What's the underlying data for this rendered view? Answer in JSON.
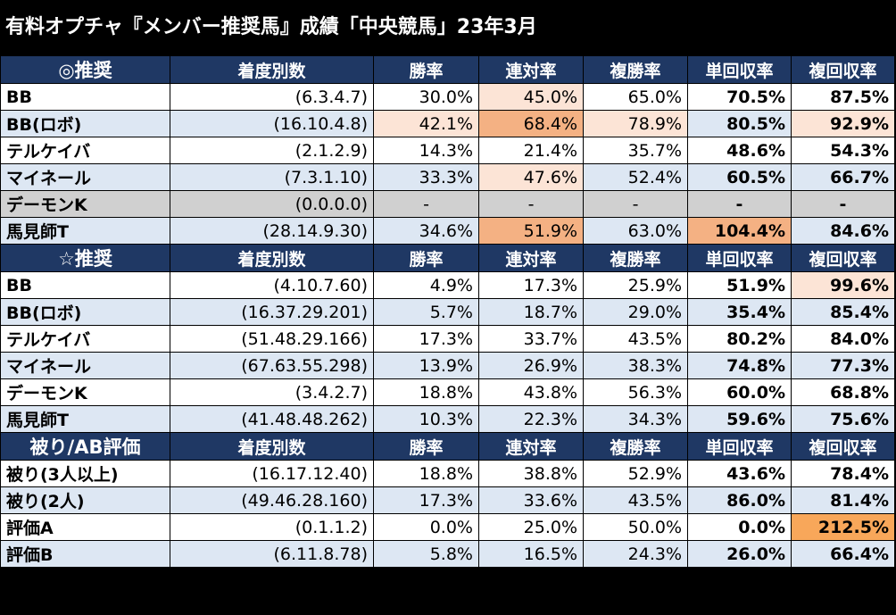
{
  "title": "有料オプチャ『メンバー推奨馬』成績「中央競馬」23年3月",
  "columns": [
    "着度別数",
    "勝率",
    "連対率",
    "複勝率",
    "単回収率",
    "複回収率"
  ],
  "colors": {
    "header_bg": "#1f3864",
    "row_alt": "#dde7f3",
    "row_gray": "#d0d0d0",
    "highlight_light": "#fce4d6",
    "highlight_mid": "#f4b183",
    "highlight_strong": "#f8a75a"
  },
  "sections": [
    {
      "name": "◎推奨",
      "rows": [
        {
          "label": "BB",
          "counts": "(6.3.4.7)",
          "win": "30.0%",
          "rentai": "45.0%",
          "fukusho": "65.0%",
          "tan": "70.5%",
          "fuku": "87.5%"
        },
        {
          "label": "BB(ロボ)",
          "counts": "(16.10.4.8)",
          "win": "42.1%",
          "rentai": "68.4%",
          "fukusho": "78.9%",
          "tan": "80.5%",
          "fuku": "92.9%"
        },
        {
          "label": "テルケイバ",
          "counts": "(2.1.2.9)",
          "win": "14.3%",
          "rentai": "21.4%",
          "fukusho": "35.7%",
          "tan": "48.6%",
          "fuku": "54.3%"
        },
        {
          "label": "マイネール",
          "counts": "(7.3.1.10)",
          "win": "33.3%",
          "rentai": "47.6%",
          "fukusho": "52.4%",
          "tan": "60.5%",
          "fuku": "66.7%"
        },
        {
          "label": "デーモンK",
          "counts": "(0.0.0.0)",
          "win": "-",
          "rentai": "-",
          "fukusho": "-",
          "tan": "-",
          "fuku": "-"
        },
        {
          "label": "馬見師T",
          "counts": "(28.14.9.30)",
          "win": "34.6%",
          "rentai": "51.9%",
          "fukusho": "63.0%",
          "tan": "104.4%",
          "fuku": "84.6%"
        }
      ]
    },
    {
      "name": "☆推奨",
      "rows": [
        {
          "label": "BB",
          "counts": "(4.10.7.60)",
          "win": "4.9%",
          "rentai": "17.3%",
          "fukusho": "25.9%",
          "tan": "51.9%",
          "fuku": "99.6%"
        },
        {
          "label": "BB(ロボ)",
          "counts": "(16.37.29.201)",
          "win": "5.7%",
          "rentai": "18.7%",
          "fukusho": "29.0%",
          "tan": "35.4%",
          "fuku": "85.4%"
        },
        {
          "label": "テルケイバ",
          "counts": "(51.48.29.166)",
          "win": "17.3%",
          "rentai": "33.7%",
          "fukusho": "43.5%",
          "tan": "80.2%",
          "fuku": "84.0%"
        },
        {
          "label": "マイネール",
          "counts": "(67.63.55.298)",
          "win": "13.9%",
          "rentai": "26.9%",
          "fukusho": "38.3%",
          "tan": "74.8%",
          "fuku": "77.3%"
        },
        {
          "label": "デーモンK",
          "counts": "(3.4.2.7)",
          "win": "18.8%",
          "rentai": "43.8%",
          "fukusho": "56.3%",
          "tan": "60.0%",
          "fuku": "68.8%"
        },
        {
          "label": "馬見師T",
          "counts": "(41.48.48.262)",
          "win": "10.3%",
          "rentai": "22.3%",
          "fukusho": "34.3%",
          "tan": "59.6%",
          "fuku": "75.6%"
        }
      ]
    },
    {
      "name": "被り/AB評価",
      "rows": [
        {
          "label": "被り(3人以上)",
          "counts": "(16.17.12.40)",
          "win": "18.8%",
          "rentai": "38.8%",
          "fukusho": "52.9%",
          "tan": "43.6%",
          "fuku": "78.4%"
        },
        {
          "label": "被り(2人)",
          "counts": "(49.46.28.160)",
          "win": "17.3%",
          "rentai": "33.6%",
          "fukusho": "43.5%",
          "tan": "86.0%",
          "fuku": "81.4%"
        },
        {
          "label": "評価A",
          "counts": "(0.1.1.2)",
          "win": "0.0%",
          "rentai": "25.0%",
          "fukusho": "50.0%",
          "tan": "0.0%",
          "fuku": "212.5%"
        },
        {
          "label": "評価B",
          "counts": "(6.11.8.78)",
          "win": "5.8%",
          "rentai": "16.5%",
          "fukusho": "24.3%",
          "tan": "26.0%",
          "fuku": "66.4%"
        }
      ]
    }
  ]
}
